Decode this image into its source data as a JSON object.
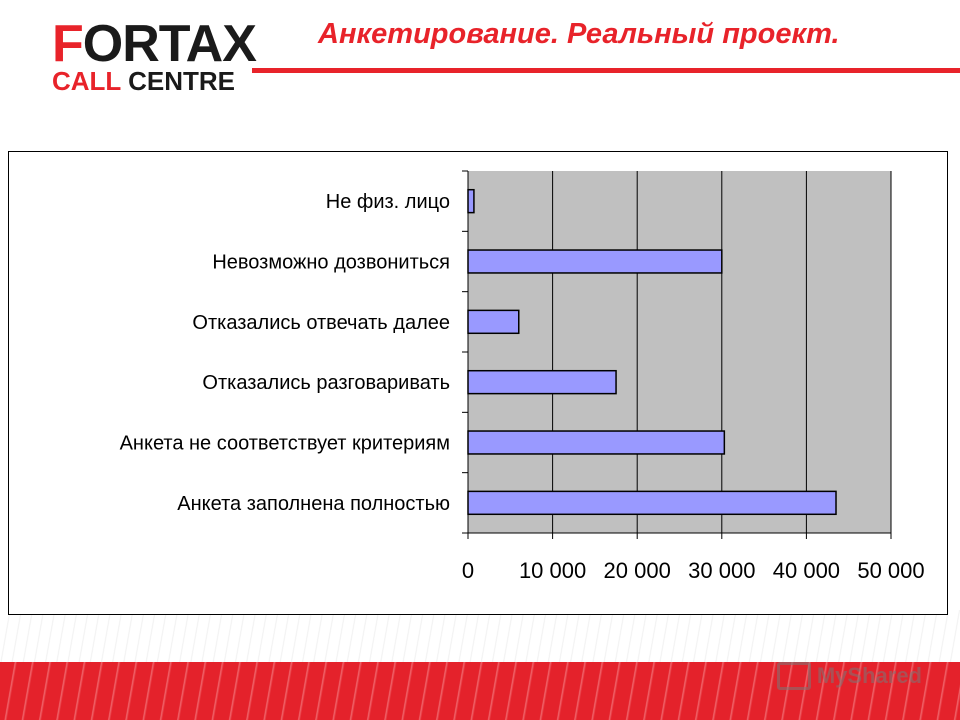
{
  "logo": {
    "brand_first": "F",
    "brand_rest": "ORTAX",
    "sub_first": "CALL",
    "sub_rest": " CENTRE"
  },
  "header": {
    "title": "Анкетирование. Реальный проект."
  },
  "colors": {
    "accent": "#e8232a",
    "bar_fill": "#9999ff",
    "plot_bg": "#c0c0c0"
  },
  "watermark": {
    "text": "MyShared"
  },
  "chart_data": {
    "type": "bar",
    "orientation": "horizontal",
    "categories": [
      "Не физ. лицо",
      "Невозможно дозвониться",
      "Отказались отвечать далее",
      "Отказались разговаривать",
      "Анкета не соответствует критериям",
      "Анкета заполнена полностью"
    ],
    "values": [
      700,
      30000,
      6000,
      17500,
      30300,
      43500
    ],
    "xlim": [
      0,
      50000
    ],
    "ticks": [
      0,
      10000,
      20000,
      30000,
      40000,
      50000
    ],
    "tick_labels": [
      "0",
      "10 000",
      "20 000",
      "30 000",
      "40 000",
      "50 000"
    ],
    "grid": "vertical",
    "legend": "none",
    "title": "",
    "xlabel": "",
    "ylabel": ""
  }
}
